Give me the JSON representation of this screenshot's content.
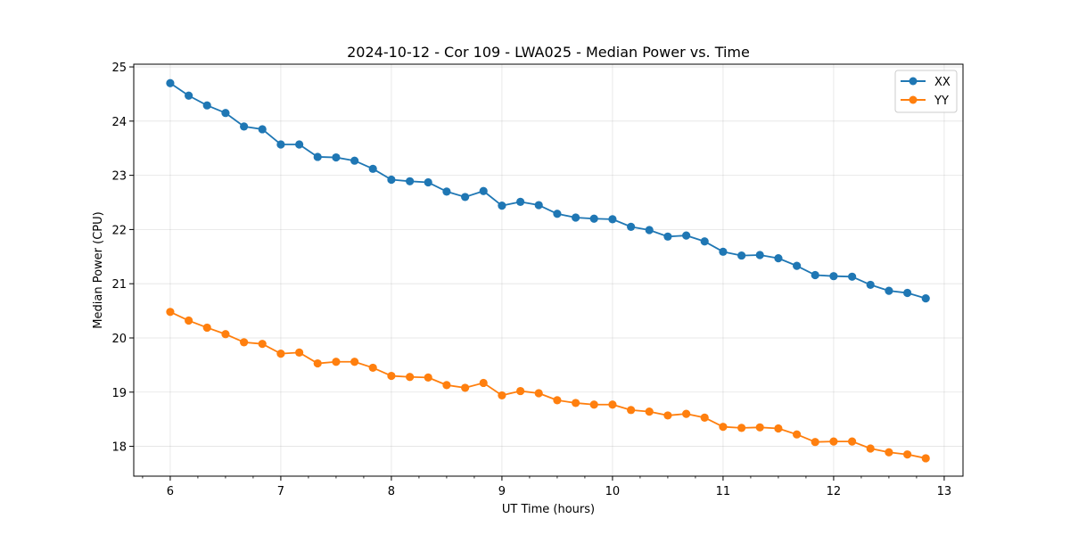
{
  "chart_data": {
    "type": "line",
    "title": "2024-10-12 - Cor 109 - LWA025 - Median Power vs. Time",
    "xlabel": "UT Time (hours)",
    "ylabel": "Median Power (CPU)",
    "xlim": [
      5.67,
      13.17
    ],
    "ylim": [
      17.45,
      25.05
    ],
    "xticks": [
      6,
      7,
      8,
      9,
      10,
      11,
      12,
      13
    ],
    "yticks": [
      18,
      19,
      20,
      21,
      22,
      23,
      24,
      25
    ],
    "grid": true,
    "legend_position": "top-right",
    "x": [
      6.0,
      6.167,
      6.333,
      6.5,
      6.667,
      6.833,
      7.0,
      7.167,
      7.333,
      7.5,
      7.667,
      7.833,
      8.0,
      8.167,
      8.333,
      8.5,
      8.667,
      8.833,
      9.0,
      9.167,
      9.333,
      9.5,
      9.667,
      9.833,
      10.0,
      10.167,
      10.333,
      10.5,
      10.667,
      10.833,
      11.0,
      11.167,
      11.333,
      11.5,
      11.667,
      11.833,
      12.0,
      12.167,
      12.333,
      12.5,
      12.667,
      12.833
    ],
    "series": [
      {
        "name": "XX",
        "color": "#1f77b4",
        "values": [
          24.7,
          24.47,
          24.29,
          24.15,
          23.9,
          23.85,
          23.57,
          23.57,
          23.34,
          23.33,
          23.27,
          23.12,
          22.92,
          22.89,
          22.87,
          22.7,
          22.6,
          22.71,
          22.44,
          22.51,
          22.45,
          22.29,
          22.22,
          22.2,
          22.19,
          22.05,
          21.99,
          21.87,
          21.89,
          21.78,
          21.59,
          21.52,
          21.53,
          21.47,
          21.33,
          21.16,
          21.14,
          21.13,
          20.98,
          20.87,
          20.83,
          20.73
        ]
      },
      {
        "name": "YY",
        "color": "#ff7f0e",
        "values": [
          20.48,
          20.32,
          20.19,
          20.07,
          19.92,
          19.89,
          19.71,
          19.73,
          19.53,
          19.56,
          19.56,
          19.45,
          19.3,
          19.28,
          19.27,
          19.13,
          19.08,
          19.17,
          18.94,
          19.02,
          18.98,
          18.85,
          18.8,
          18.77,
          18.77,
          18.67,
          18.64,
          18.57,
          18.6,
          18.53,
          18.36,
          18.34,
          18.35,
          18.33,
          18.22,
          18.08,
          18.09,
          18.09,
          17.96,
          17.89,
          17.85,
          17.78
        ]
      }
    ]
  }
}
